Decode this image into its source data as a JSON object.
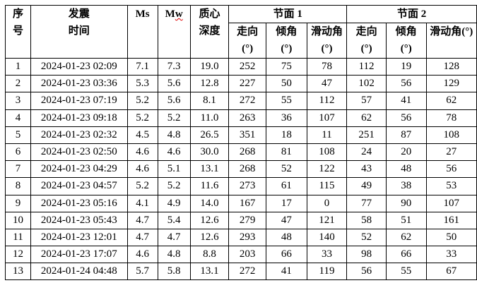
{
  "header": {
    "seq": "序号",
    "time": "发震时间",
    "ms": "Ms",
    "mw": "Mw",
    "depth": "质心深度",
    "plane1": "节面 1",
    "plane2": "节面 2",
    "p1_cols": [
      "走向(°)",
      "倾角(°)",
      "滑动角(°)"
    ],
    "p2_cols": [
      "走向(°)",
      "倾角(°)",
      "滑动角(°)"
    ]
  },
  "rows": [
    [
      "1",
      "2024-01-23 02:09",
      "7.1",
      "7.3",
      "19.0",
      "252",
      "75",
      "78",
      "112",
      "19",
      "128"
    ],
    [
      "2",
      "2024-01-23 03:36",
      "5.3",
      "5.6",
      "12.8",
      "227",
      "50",
      "47",
      "102",
      "56",
      "129"
    ],
    [
      "3",
      "2024-01-23 07:19",
      "5.2",
      "5.6",
      "8.1",
      "272",
      "55",
      "112",
      "57",
      "41",
      "62"
    ],
    [
      "4",
      "2024-01-23 09:18",
      "5.2",
      "5.2",
      "11.0",
      "263",
      "36",
      "107",
      "62",
      "56",
      "78"
    ],
    [
      "5",
      "2024-01-23 02:32",
      "4.5",
      "4.8",
      "26.5",
      "351",
      "18",
      "11",
      "251",
      "87",
      "108"
    ],
    [
      "6",
      "2024-01-23 02:50",
      "4.6",
      "4.6",
      "30.0",
      "268",
      "81",
      "108",
      "24",
      "20",
      "27"
    ],
    [
      "7",
      "2024-01-23 04:29",
      "4.6",
      "5.1",
      "13.1",
      "268",
      "52",
      "122",
      "43",
      "48",
      "56"
    ],
    [
      "8",
      "2024-01-23 04:57",
      "5.2",
      "5.2",
      "11.6",
      "273",
      "61",
      "115",
      "49",
      "38",
      "53"
    ],
    [
      "9",
      "2024-01-23 05:16",
      "4.1",
      "4.9",
      "14.0",
      "167",
      "17",
      "0",
      "77",
      "90",
      "107"
    ],
    [
      "10",
      "2024-01-23 05:43",
      "4.7",
      "5.4",
      "12.6",
      "279",
      "47",
      "121",
      "58",
      "51",
      "161"
    ],
    [
      "11",
      "2024-01-23 12:01",
      "4.7",
      "4.7",
      "12.6",
      "293",
      "48",
      "140",
      "52",
      "62",
      "50"
    ],
    [
      "12",
      "2024-01-23 17:07",
      "4.6",
      "4.8",
      "8.8",
      "203",
      "66",
      "33",
      "98",
      "66",
      "33"
    ],
    [
      "13",
      "2024-01-24 04:48",
      "5.7",
      "5.8",
      "13.1",
      "272",
      "41",
      "119",
      "56",
      "55",
      "67"
    ]
  ]
}
